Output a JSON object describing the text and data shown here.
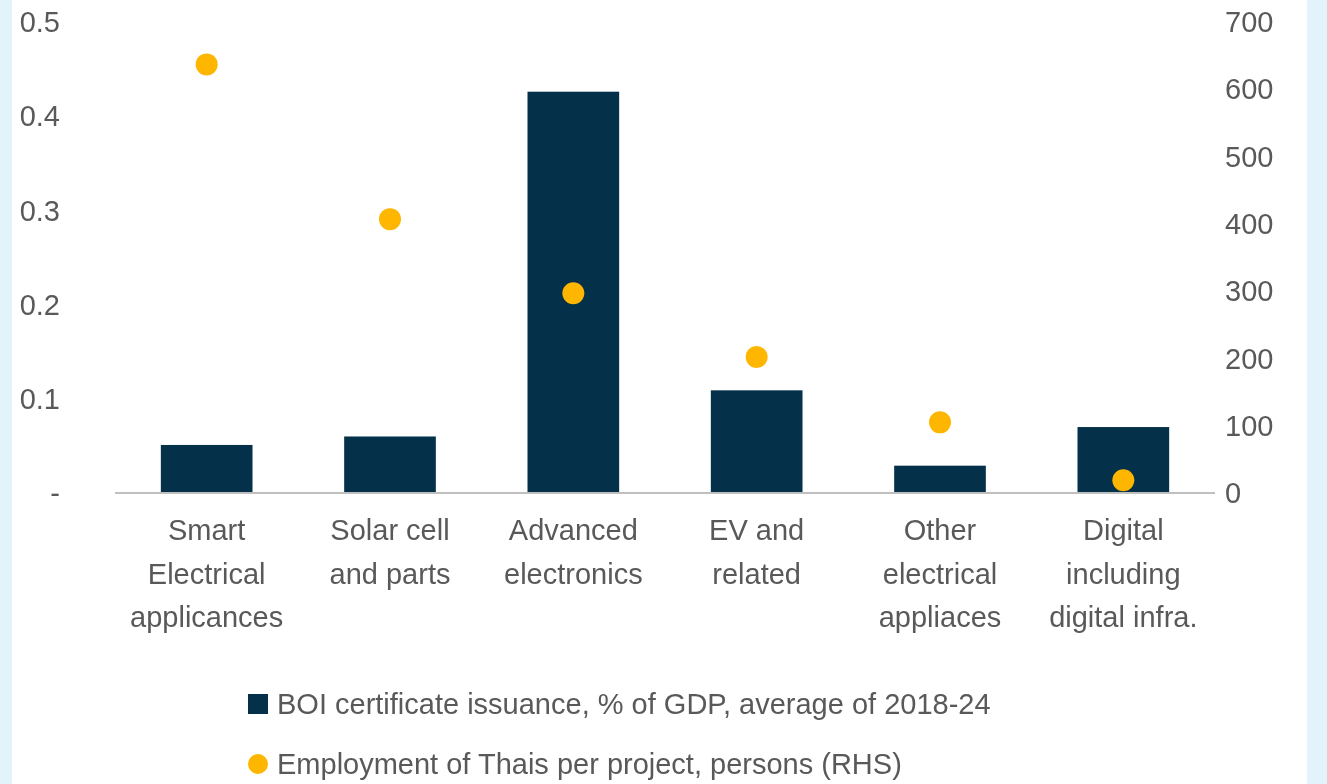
{
  "chart_data": {
    "type": "bar",
    "categories": [
      "Smart Electrical applicances",
      "Solar cell and parts",
      "Advanced electronics",
      "EV and related",
      "Other electrical appliaces",
      "Digital including digital infra."
    ],
    "series": [
      {
        "name": "BOI certificate issuance, % of GDP, average of 2018-24",
        "color": "#05304a",
        "values": [
          0.051,
          0.06,
          0.426,
          0.109,
          0.029,
          0.07
        ]
      },
      {
        "name": "Employment of Thais per project, persons (RHS)",
        "type": "scatter",
        "axis": "y2",
        "color": "#ffb600",
        "values": [
          637,
          407,
          297,
          202,
          105,
          19
        ]
      }
    ],
    "ylim": [
      0,
      0.5
    ],
    "yticks": [
      {
        "value": 0,
        "label": "-"
      },
      0.1,
      0.2,
      0.3,
      0.4,
      0.5
    ],
    "y2lim": [
      0,
      700
    ],
    "y2ticks": [
      0,
      100,
      200,
      300,
      400,
      500,
      600,
      700
    ],
    "marker": "circle",
    "legend": "bottom"
  }
}
